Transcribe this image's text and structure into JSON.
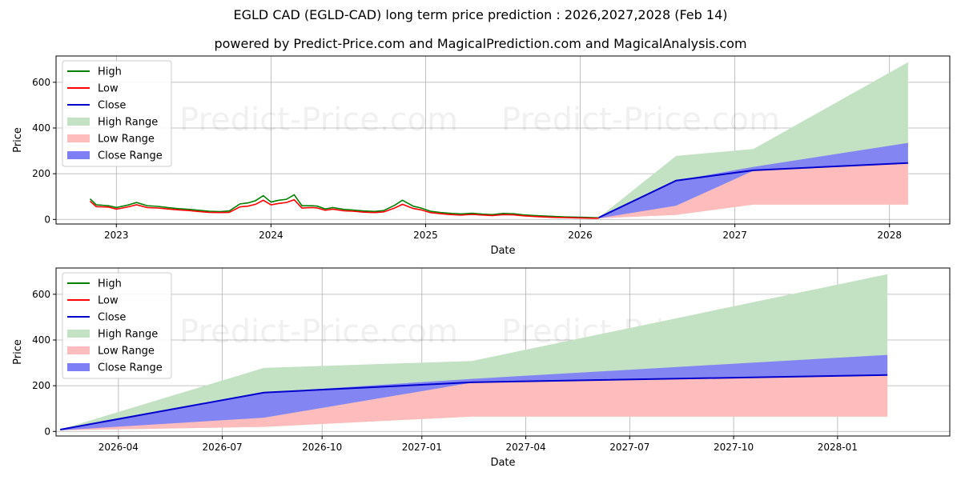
{
  "title": "EGLD CAD (EGLD-CAD) long term price prediction : 2026,2027,2028 (Feb 14)",
  "subtitle": "powered by Predict-Price.com and MagicalPrediction.com and MagicalAnalysis.com",
  "watermark": "Predict-Price.com",
  "colors": {
    "high": "#008000",
    "low": "#ff0000",
    "close": "#0000cc",
    "high_range": "#c3e2c3",
    "low_range": "#ffbcbc",
    "close_range": "#7f7ff5",
    "grid": "#b0b0b0"
  },
  "chart_data": [
    {
      "type": "line",
      "xlabel": "Date",
      "ylabel": "Price",
      "grid": true,
      "legend": "top-left",
      "legend_labels": [
        "High",
        "Low",
        "Close",
        "High Range",
        "Low Range",
        "Close Range"
      ],
      "xlim": [
        2022.61,
        2028.39
      ],
      "ylim": [
        -20,
        715
      ],
      "x_ticks": [
        2023,
        2024,
        2025,
        2026,
        2027,
        2028
      ],
      "x_tick_labels": [
        "2023",
        "2024",
        "2025",
        "2026",
        "2027",
        "2028"
      ],
      "y_ticks": [
        0,
        200,
        400,
        600
      ],
      "y_tick_labels": [
        "0",
        "200",
        "400",
        "600"
      ],
      "history": {
        "x": [
          2022.83,
          2022.87,
          2022.95,
          2023.0,
          2023.07,
          2023.13,
          2023.2,
          2023.27,
          2023.33,
          2023.4,
          2023.47,
          2023.53,
          2023.6,
          2023.67,
          2023.73,
          2023.8,
          2023.85,
          2023.9,
          2023.95,
          2024.0,
          2024.05,
          2024.1,
          2024.15,
          2024.2,
          2024.27,
          2024.3,
          2024.35,
          2024.4,
          2024.47,
          2024.53,
          2024.6,
          2024.67,
          2024.73,
          2024.8,
          2024.85,
          2024.92,
          2024.97,
          2025.03,
          2025.1,
          2025.17,
          2025.23,
          2025.3,
          2025.37,
          2025.43,
          2025.5,
          2025.57,
          2025.63,
          2025.7,
          2025.77,
          2025.83,
          2025.9,
          2025.97,
          2026.03,
          2026.08,
          2026.12
        ],
        "high": [
          90,
          64,
          60,
          52,
          62,
          74,
          60,
          57,
          52,
          47,
          44,
          40,
          36,
          34,
          37,
          68,
          72,
          82,
          104,
          76,
          84,
          88,
          108,
          60,
          60,
          58,
          46,
          52,
          44,
          41,
          37,
          35,
          39,
          62,
          84,
          58,
          50,
          36,
          30,
          26,
          24,
          27,
          23,
          21,
          26,
          25,
          20,
          17,
          15,
          13,
          11,
          10,
          9,
          8,
          7
        ],
        "low": [
          80,
          56,
          54,
          45,
          54,
          64,
          52,
          50,
          46,
          42,
          39,
          35,
          31,
          30,
          31,
          55,
          58,
          66,
          84,
          64,
          70,
          74,
          86,
          50,
          52,
          50,
          40,
          45,
          38,
          36,
          32,
          30,
          33,
          50,
          66,
          48,
          42,
          30,
          25,
          21,
          19,
          22,
          19,
          17,
          21,
          20,
          16,
          13,
          11,
          9,
          8,
          7,
          6,
          5,
          5
        ]
      },
      "forecast": {
        "x": [
          2026.12,
          2026.62,
          2027.12,
          2028.12
        ],
        "close": [
          8,
          170,
          215,
          247
        ],
        "high_range": [
          [
            5,
            8
          ],
          [
            20,
            278
          ],
          [
            65,
            308
          ],
          [
            65,
            688
          ]
        ],
        "low_range": [
          [
            5,
            8
          ],
          [
            20,
            60
          ],
          [
            65,
            213
          ],
          [
            65,
            247
          ]
        ],
        "close_range": [
          [
            5,
            8
          ],
          [
            60,
            170
          ],
          [
            213,
            230
          ],
          [
            247,
            335
          ]
        ]
      }
    },
    {
      "type": "line",
      "xlabel": "Date",
      "ylabel": "Price",
      "grid": true,
      "legend": "top-left",
      "legend_labels": [
        "High",
        "Low",
        "Close",
        "High Range",
        "Low Range",
        "Close Range"
      ],
      "xlim": [
        2026.12,
        2028.27
      ],
      "ylim": [
        -20,
        715
      ],
      "x_ticks": [
        2026.27,
        2026.52,
        2026.76,
        2027.0,
        2027.25,
        2027.5,
        2027.75,
        2028.0
      ],
      "x_tick_labels": [
        "2026-04",
        "2026-07",
        "2026-10",
        "2027-01",
        "2027-04",
        "2027-07",
        "2027-10",
        "2028-01"
      ],
      "y_ticks": [
        0,
        200,
        400,
        600
      ],
      "y_tick_labels": [
        "0",
        "200",
        "400",
        "600"
      ],
      "forecast": {
        "x": [
          2026.13,
          2026.62,
          2027.12,
          2028.12
        ],
        "close": [
          8,
          170,
          215,
          247
        ],
        "high_range": [
          [
            5,
            8
          ],
          [
            20,
            278
          ],
          [
            65,
            308
          ],
          [
            65,
            688
          ]
        ],
        "low_range": [
          [
            5,
            8
          ],
          [
            20,
            60
          ],
          [
            65,
            213
          ],
          [
            65,
            247
          ]
        ],
        "close_range": [
          [
            5,
            8
          ],
          [
            60,
            170
          ],
          [
            213,
            230
          ],
          [
            247,
            335
          ]
        ]
      }
    }
  ]
}
